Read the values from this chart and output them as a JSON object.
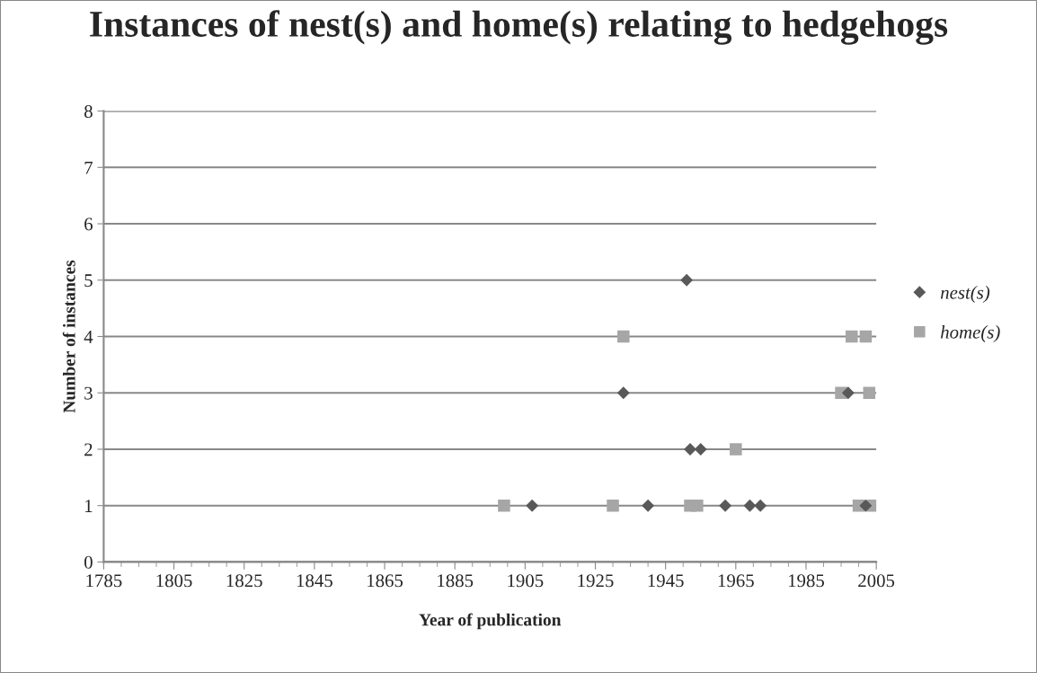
{
  "chart_data": {
    "type": "scatter",
    "title": "Instances of nest(s) and home(s) relating to hedgehogs",
    "xlabel": "Year of publication",
    "ylabel": "Number of instances",
    "series": [
      {
        "name": "nest(s)",
        "color": "#595959",
        "marker": "diamond",
        "x": [
          1907,
          1933,
          1940,
          1951,
          1952,
          1955,
          1962,
          1969,
          1972,
          1997,
          2002
        ],
        "values": [
          1,
          3,
          1,
          5,
          2,
          2,
          1,
          1,
          1,
          3,
          1
        ]
      },
      {
        "name": "home(s)",
        "color": "#a6a6a6",
        "marker": "square",
        "x": [
          1899,
          1930,
          1933,
          1952,
          1954,
          1965,
          1995,
          1998,
          2000,
          2002,
          2003,
          2004
        ],
        "values": [
          1,
          1,
          4,
          1,
          1,
          2,
          3,
          4,
          1,
          4,
          3,
          1
        ]
      }
    ],
    "xlim": [
      1785,
      2005
    ],
    "xticks": [
      1785,
      1805,
      1825,
      1845,
      1865,
      1885,
      1905,
      1925,
      1945,
      1965,
      1985,
      2005
    ],
    "ylim": [
      0,
      8
    ],
    "yticks": [
      0,
      1,
      2,
      3,
      4,
      5,
      6,
      7,
      8
    ],
    "grid": "y",
    "legend": "right"
  }
}
